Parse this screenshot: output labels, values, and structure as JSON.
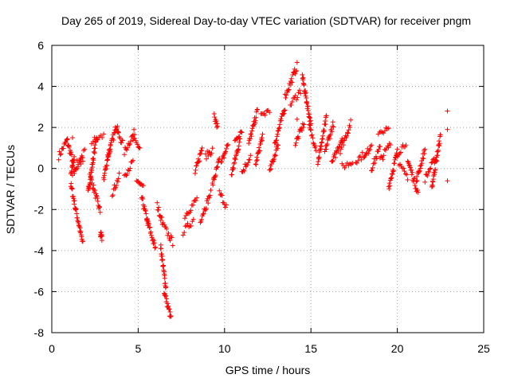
{
  "chart_data": {
    "type": "scatter",
    "title": "Day 265 of 2019, Sidereal Day-to-day VTEC variation (SDTVAR) for receiver pngm",
    "xlabel": "GPS time / hours",
    "ylabel": "SDTVAR / TECUs",
    "xlim": [
      0,
      25
    ],
    "ylim": [
      -8,
      6
    ],
    "xticks": [
      0,
      5,
      10,
      15,
      20,
      25
    ],
    "yticks": [
      -8,
      -6,
      -4,
      -2,
      0,
      2,
      4,
      6
    ],
    "grid": true,
    "marker": "+",
    "marker_color": "#ff0000",
    "series": [
      {
        "name": "SDTVAR",
        "segments": [
          {
            "x": [
              0.4,
              0.9
            ],
            "y": [
              0.6,
              1.4
            ]
          },
          {
            "x": [
              0.9,
              1.2
            ],
            "y": [
              1.3,
              0.4
            ]
          },
          {
            "x": [
              1.1,
              1.3
            ],
            "y": [
              -0.4,
              0.6
            ]
          },
          {
            "x": [
              1.1,
              1.8
            ],
            "y": [
              -0.8,
              -3.7
            ]
          },
          {
            "x": [
              1.2,
              1.8
            ],
            "y": [
              -0.3,
              0.5
            ]
          },
          {
            "x": [
              1.3,
              1.9
            ],
            "y": [
              0.0,
              0.8
            ]
          },
          {
            "x": [
              2.1,
              2.6
            ],
            "y": [
              -1.2,
              1.6
            ]
          },
          {
            "x": [
              2.2,
              2.8
            ],
            "y": [
              -0.3,
              -2.1
            ]
          },
          {
            "x": [
              2.3,
              3.0
            ],
            "y": [
              1.3,
              1.6
            ]
          },
          {
            "x": [
              2.8,
              2.9
            ],
            "y": [
              -3.2,
              -3.4
            ]
          },
          {
            "x": [
              3.0,
              3.4
            ],
            "y": [
              -0.5,
              1.1
            ]
          },
          {
            "x": [
              3.2,
              3.8
            ],
            "y": [
              0.5,
              2.2
            ]
          },
          {
            "x": [
              3.5,
              3.9
            ],
            "y": [
              -1.2,
              -0.4
            ]
          },
          {
            "x": [
              3.8,
              4.1
            ],
            "y": [
              1.8,
              1.2
            ]
          },
          {
            "x": [
              4.2,
              4.8
            ],
            "y": [
              0.8,
              1.8
            ]
          },
          {
            "x": [
              4.2,
              4.7
            ],
            "y": [
              -0.3,
              0.3
            ]
          },
          {
            "x": [
              4.7,
              5.1
            ],
            "y": [
              1.4,
              1.0
            ]
          },
          {
            "x": [
              4.9,
              5.3
            ],
            "y": [
              -0.6,
              -1.0
            ]
          },
          {
            "x": [
              5.2,
              5.6
            ],
            "y": [
              -1.4,
              -2.8
            ]
          },
          {
            "x": [
              5.5,
              6.0
            ],
            "y": [
              -2.5,
              -3.9
            ]
          },
          {
            "x": [
              6.1,
              6.4
            ],
            "y": [
              -1.8,
              -2.6
            ]
          },
          {
            "x": [
              6.3,
              6.6
            ],
            "y": [
              -3.8,
              -5.8
            ]
          },
          {
            "x": [
              6.5,
              6.9
            ],
            "y": [
              -6.0,
              -7.3
            ]
          },
          {
            "x": [
              6.4,
              7.0
            ],
            "y": [
              -2.7,
              -3.6
            ]
          },
          {
            "x": [
              7.6,
              8.2
            ],
            "y": [
              -3.1,
              -2.5
            ]
          },
          {
            "x": [
              7.7,
              8.4
            ],
            "y": [
              -2.3,
              -1.5
            ]
          },
          {
            "x": [
              8.3,
              8.7
            ],
            "y": [
              -0.2,
              1.0
            ]
          },
          {
            "x": [
              8.6,
              9.2
            ],
            "y": [
              -2.5,
              -1.2
            ]
          },
          {
            "x": [
              8.9,
              9.3
            ],
            "y": [
              0.6,
              0.9
            ]
          },
          {
            "x": [
              9.3,
              9.7
            ],
            "y": [
              -0.8,
              0.4
            ]
          },
          {
            "x": [
              9.4,
              9.6
            ],
            "y": [
              2.5,
              2.0
            ]
          },
          {
            "x": [
              9.7,
              10.1
            ],
            "y": [
              -1.2,
              -1.8
            ]
          },
          {
            "x": [
              9.8,
              10.2
            ],
            "y": [
              0.2,
              1.2
            ]
          },
          {
            "x": [
              10.4,
              10.9
            ],
            "y": [
              -0.3,
              1.4
            ]
          },
          {
            "x": [
              10.6,
              11.0
            ],
            "y": [
              1.4,
              1.9
            ]
          },
          {
            "x": [
              11.0,
              11.5
            ],
            "y": [
              -0.2,
              0.6
            ]
          },
          {
            "x": [
              11.4,
              11.9
            ],
            "y": [
              1.2,
              2.8
            ]
          },
          {
            "x": [
              11.8,
              12.2
            ],
            "y": [
              0.2,
              1.6
            ]
          },
          {
            "x": [
              12.1,
              12.6
            ],
            "y": [
              2.5,
              2.9
            ]
          },
          {
            "x": [
              12.6,
              13.1
            ],
            "y": [
              -0.2,
              1.2
            ]
          },
          {
            "x": [
              12.9,
              13.5
            ],
            "y": [
              1.2,
              3.0
            ]
          },
          {
            "x": [
              13.5,
              14.2
            ],
            "y": [
              3.5,
              5.0
            ]
          },
          {
            "x": [
              13.8,
              14.4
            ],
            "y": [
              3.1,
              3.8
            ]
          },
          {
            "x": [
              14.1,
              14.6
            ],
            "y": [
              1.2,
              2.2
            ]
          },
          {
            "x": [
              14.5,
              15.0
            ],
            "y": [
              4.5,
              2.1
            ]
          },
          {
            "x": [
              14.9,
              15.3
            ],
            "y": [
              2.0,
              1.0
            ]
          },
          {
            "x": [
              15.4,
              15.9
            ],
            "y": [
              0.3,
              2.5
            ]
          },
          {
            "x": [
              15.8,
              16.3
            ],
            "y": [
              0.8,
              2.2
            ]
          },
          {
            "x": [
              16.2,
              16.8
            ],
            "y": [
              0.2,
              1.5
            ]
          },
          {
            "x": [
              16.7,
              17.3
            ],
            "y": [
              0.9,
              2.2
            ]
          },
          {
            "x": [
              16.8,
              17.4
            ],
            "y": [
              0.1,
              0.3
            ]
          },
          {
            "x": [
              17.6,
              18.1
            ],
            "y": [
              0.4,
              0.7
            ]
          },
          {
            "x": [
              18.1,
              18.5
            ],
            "y": [
              0.5,
              1.2
            ]
          },
          {
            "x": [
              18.5,
              19.0
            ],
            "y": [
              0.0,
              1.0
            ]
          },
          {
            "x": [
              18.9,
              19.5
            ],
            "y": [
              1.8,
              1.9
            ]
          },
          {
            "x": [
              19.0,
              19.6
            ],
            "y": [
              0.4,
              1.2
            ]
          },
          {
            "x": [
              19.5,
              20.0
            ],
            "y": [
              -0.9,
              0.8
            ]
          },
          {
            "x": [
              19.9,
              20.5
            ],
            "y": [
              0.6,
              1.3
            ]
          },
          {
            "x": [
              20.1,
              20.6
            ],
            "y": [
              0.1,
              -0.4
            ]
          },
          {
            "x": [
              20.6,
              21.2
            ],
            "y": [
              0.4,
              -1.2
            ]
          },
          {
            "x": [
              21.1,
              21.6
            ],
            "y": [
              -0.6,
              0.9
            ]
          },
          {
            "x": [
              21.6,
              22.2
            ],
            "y": [
              -0.5,
              0.5
            ]
          },
          {
            "x": [
              22.0,
              22.5
            ],
            "y": [
              -0.9,
              1.6
            ]
          }
        ],
        "isolated": [
          {
            "x": 22.9,
            "y": 2.8
          },
          {
            "x": 22.9,
            "y": 1.9
          },
          {
            "x": 22.9,
            "y": -0.6
          },
          {
            "x": 1.2,
            "y": 1.5
          },
          {
            "x": 2.9,
            "y": -3.3
          },
          {
            "x": 14.2,
            "y": 2.4
          }
        ]
      }
    ]
  }
}
